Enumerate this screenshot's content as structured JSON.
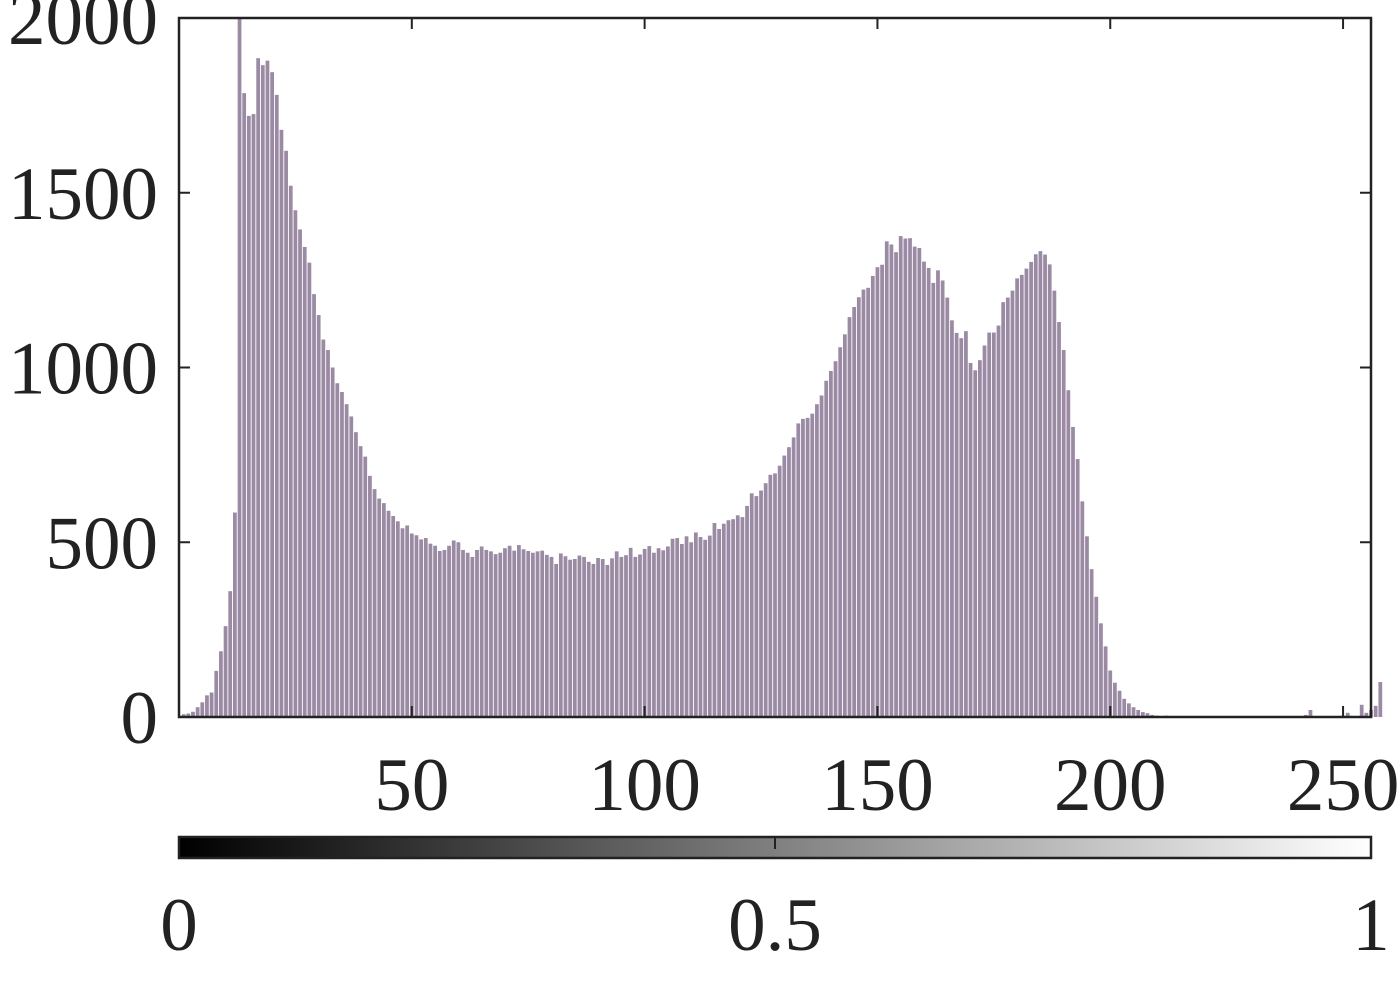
{
  "chart_data": {
    "type": "bar",
    "title": "",
    "xlabel": "",
    "ylabel": "",
    "xlim": [
      0,
      256
    ],
    "ylim": [
      0,
      2000
    ],
    "x_ticks": [
      50,
      100,
      150,
      200,
      250
    ],
    "y_ticks": [
      0,
      500,
      1000,
      1500,
      2000
    ],
    "grid": false,
    "bar_color": "#9b8aa3",
    "bins_start": 1,
    "values": [
      8,
      10,
      15,
      28,
      42,
      62,
      70,
      132,
      188,
      260,
      360,
      585,
      2080,
      1785,
      1720,
      1725,
      1885,
      1865,
      1878,
      1845,
      1780,
      1680,
      1620,
      1520,
      1450,
      1395,
      1345,
      1300,
      1210,
      1150,
      1080,
      1050,
      1000,
      955,
      930,
      895,
      860,
      815,
      775,
      745,
      690,
      652,
      625,
      612,
      590,
      575,
      560,
      540,
      548,
      525,
      520,
      508,
      512,
      496,
      490,
      475,
      478,
      490,
      505,
      500,
      478,
      470,
      458,
      478,
      488,
      478,
      474,
      466,
      470,
      483,
      490,
      476,
      492,
      480,
      475,
      470,
      474,
      476,
      464,
      458,
      438,
      468,
      460,
      450,
      452,
      462,
      458,
      444,
      438,
      455,
      452,
      435,
      454,
      474,
      458,
      463,
      484,
      458,
      465,
      481,
      489,
      470,
      483,
      477,
      488,
      510,
      512,
      495,
      517,
      500,
      528,
      515,
      507,
      519,
      555,
      538,
      553,
      563,
      566,
      577,
      572,
      604,
      640,
      632,
      648,
      669,
      693,
      697,
      719,
      748,
      772,
      800,
      840,
      853,
      856,
      868,
      895,
      920,
      962,
      990,
      1018,
      1058,
      1095,
      1144,
      1173,
      1201,
      1223,
      1228,
      1262,
      1287,
      1294,
      1361,
      1352,
      1330,
      1376,
      1369,
      1370,
      1346,
      1342,
      1303,
      1285,
      1242,
      1278,
      1249,
      1200,
      1135,
      1099,
      1084,
      1104,
      1013,
      992,
      1021,
      1063,
      1100,
      1100,
      1120,
      1187,
      1200,
      1220,
      1255,
      1265,
      1283,
      1302,
      1324,
      1333,
      1323,
      1295,
      1220,
      1130,
      1050,
      935,
      830,
      738,
      617,
      517,
      423,
      344,
      268,
      202,
      133,
      98,
      75,
      52,
      39,
      28,
      20,
      14,
      11,
      6,
      4,
      2,
      4,
      1,
      1,
      2,
      0,
      0,
      0,
      0,
      0,
      0,
      0,
      0,
      0,
      0,
      0,
      0,
      0,
      0,
      0,
      0,
      0,
      0,
      0,
      0,
      0,
      0,
      0,
      0,
      0,
      1,
      6,
      20,
      0,
      0,
      0,
      0,
      0,
      0,
      4,
      12,
      3,
      2,
      35,
      12,
      20,
      32,
      100
    ]
  },
  "colorbar": {
    "ticks": [
      "0",
      "0.5",
      "1"
    ],
    "start_color": "#000000",
    "end_color": "#ffffff"
  }
}
